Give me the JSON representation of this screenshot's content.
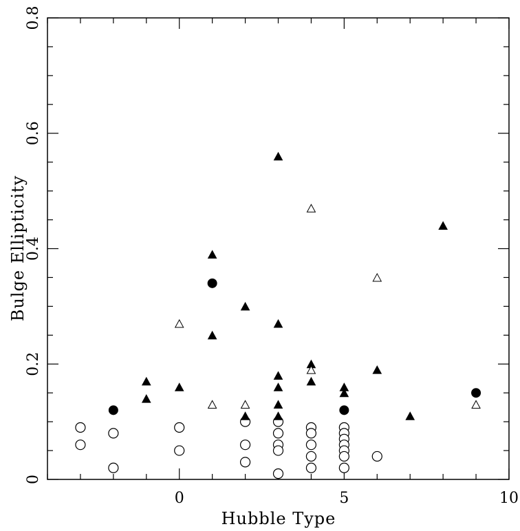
{
  "chart_data": {
    "type": "scatter",
    "xlabel": "Hubble Type",
    "ylabel": "Bulge Ellipticity",
    "xlim": [
      -4,
      10
    ],
    "ylim": [
      0,
      0.8
    ],
    "x_ticks": [
      {
        "value": 0,
        "label": "0"
      },
      {
        "value": 5,
        "label": "5"
      },
      {
        "value": 10,
        "label": "10"
      }
    ],
    "y_ticks": [
      {
        "value": 0,
        "label": "0"
      },
      {
        "value": 0.2,
        "label": "0.2"
      },
      {
        "value": 0.4,
        "label": "0.4"
      },
      {
        "value": 0.6,
        "label": "0.6"
      },
      {
        "value": 0.8,
        "label": "0.8"
      }
    ],
    "grid": false,
    "legend": "none",
    "series": [
      {
        "marker": "circle-open",
        "points": [
          [
            -3,
            0.09
          ],
          [
            -3,
            0.06
          ],
          [
            -2,
            0.08
          ],
          [
            -2,
            0.02
          ],
          [
            0,
            0.09
          ],
          [
            0,
            0.05
          ],
          [
            2,
            0.1
          ],
          [
            2,
            0.06
          ],
          [
            2,
            0.03
          ],
          [
            3,
            0.1
          ],
          [
            3,
            0.08
          ],
          [
            3,
            0.06
          ],
          [
            3,
            0.05
          ],
          [
            3,
            0.01
          ],
          [
            4,
            0.09
          ],
          [
            4,
            0.08
          ],
          [
            4,
            0.06
          ],
          [
            4,
            0.04
          ],
          [
            4,
            0.02
          ],
          [
            5,
            0.09
          ],
          [
            5,
            0.08
          ],
          [
            5,
            0.07
          ],
          [
            5,
            0.06
          ],
          [
            5,
            0.05
          ],
          [
            5,
            0.04
          ],
          [
            5,
            0.02
          ],
          [
            6,
            0.04
          ]
        ]
      },
      {
        "marker": "circle-filled",
        "points": [
          [
            -2,
            0.12
          ],
          [
            1,
            0.34
          ],
          [
            5,
            0.12
          ],
          [
            9,
            0.15
          ]
        ]
      },
      {
        "marker": "triangle-filled",
        "points": [
          [
            -1,
            0.17
          ],
          [
            -1,
            0.14
          ],
          [
            0,
            0.16
          ],
          [
            1,
            0.39
          ],
          [
            1,
            0.25
          ],
          [
            2,
            0.3
          ],
          [
            2,
            0.11
          ],
          [
            3,
            0.56
          ],
          [
            3,
            0.27
          ],
          [
            3,
            0.18
          ],
          [
            3,
            0.16
          ],
          [
            3,
            0.13
          ],
          [
            3,
            0.11
          ],
          [
            4,
            0.2
          ],
          [
            4,
            0.17
          ],
          [
            5,
            0.16
          ],
          [
            5,
            0.15
          ],
          [
            6,
            0.19
          ],
          [
            7,
            0.11
          ],
          [
            8,
            0.44
          ]
        ]
      },
      {
        "marker": "triangle-open",
        "points": [
          [
            0,
            0.27
          ],
          [
            1,
            0.13
          ],
          [
            2,
            0.13
          ],
          [
            4,
            0.47
          ],
          [
            4,
            0.19
          ],
          [
            6,
            0.35
          ],
          [
            9,
            0.13
          ]
        ]
      }
    ]
  }
}
